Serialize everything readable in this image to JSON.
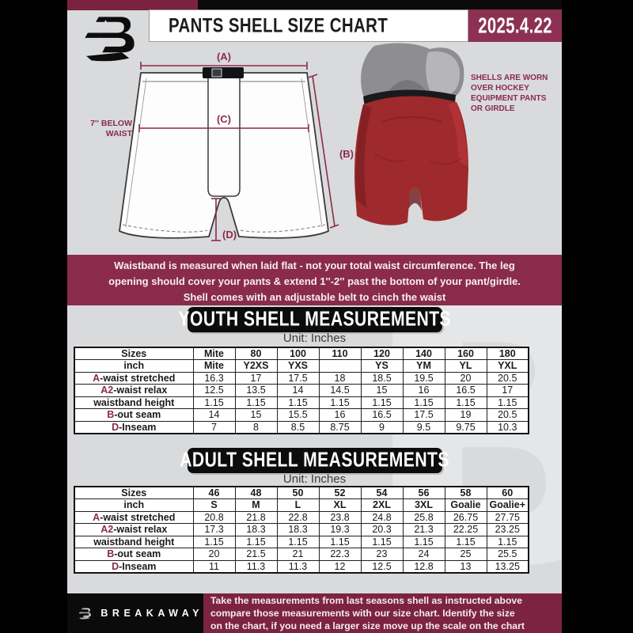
{
  "header": {
    "title": "PANTS SHELL SIZE CHART",
    "date": "2025.4.22",
    "logo_letter": "B"
  },
  "diagram": {
    "label_a": "(A)",
    "label_b": "(B)",
    "label_c": "(C)",
    "label_d": "(D)",
    "waist_note_line1": "7'' BELOW",
    "waist_note_line2": "WAIST"
  },
  "photo_note": {
    "lines": [
      "SHELLS ARE WORN",
      "OVER HOCKEY",
      "EQUIPMENT PANTS",
      "OR GIRDLE"
    ]
  },
  "notice": {
    "line1": "Waistband is measured when laid flat - not your total waist circumference. The leg",
    "line2": "opening should cover your pants & extend 1''-2'' past the bottom of your pant/girdle.",
    "line3": "Shell comes with an adjustable belt to cinch the waist"
  },
  "youth": {
    "banner": "YOUTH SHELL MEASUREMENTS",
    "unit": "Unit: Inches",
    "rows": [
      {
        "prefix": "",
        "label": "Sizes",
        "header": true,
        "values": [
          "Mite",
          "80",
          "100",
          "110",
          "120",
          "140",
          "160",
          "180"
        ]
      },
      {
        "prefix": "",
        "label": "inch",
        "header": true,
        "values": [
          "Mite",
          "Y2XS",
          "YXS",
          "",
          "YS",
          "YM",
          "YL",
          "YXL"
        ]
      },
      {
        "prefix": "A",
        "label": "-waist stretched",
        "header": false,
        "values": [
          "16.3",
          "17",
          "17.5",
          "18",
          "18.5",
          "19.5",
          "20",
          "20.5"
        ]
      },
      {
        "prefix": "A2",
        "label": "-waist relax",
        "header": false,
        "values": [
          "12.5",
          "13.5",
          "14",
          "14.5",
          "15",
          "16",
          "16.5",
          "17"
        ]
      },
      {
        "prefix": "",
        "label": "waistband height",
        "header": false,
        "values": [
          "1.15",
          "1.15",
          "1.15",
          "1.15",
          "1.15",
          "1.15",
          "1.15",
          "1.15"
        ]
      },
      {
        "prefix": "B",
        "label": "-out seam",
        "header": false,
        "values": [
          "14",
          "15",
          "15.5",
          "16",
          "16.5",
          "17.5",
          "19",
          "20.5"
        ]
      },
      {
        "prefix": "D",
        "label": "-Inseam",
        "header": false,
        "values": [
          "7",
          "8",
          "8.5",
          "8.75",
          "9",
          "9.5",
          "9.75",
          "10.3"
        ]
      }
    ]
  },
  "adult": {
    "banner": "ADULT SHELL MEASUREMENTS",
    "unit": "Unit: Inches",
    "rows": [
      {
        "prefix": "",
        "label": "Sizes",
        "header": true,
        "values": [
          "46",
          "48",
          "50",
          "52",
          "54",
          "56",
          "58",
          "60"
        ]
      },
      {
        "prefix": "",
        "label": "inch",
        "header": true,
        "values": [
          "S",
          "M",
          "L",
          "XL",
          "2XL",
          "3XL",
          "Goalie",
          "Goalie+"
        ]
      },
      {
        "prefix": "A",
        "label": "-waist stretched",
        "header": false,
        "values": [
          "20.8",
          "21.8",
          "22.8",
          "23.8",
          "24.8",
          "25.8",
          "26.75",
          "27.75"
        ]
      },
      {
        "prefix": "A2",
        "label": "-waist relax",
        "header": false,
        "values": [
          "17.3",
          "18.3",
          "18.3",
          "19.3",
          "20.3",
          "21.3",
          "22.25",
          "23.25"
        ]
      },
      {
        "prefix": "",
        "label": "waistband height",
        "header": false,
        "values": [
          "1.15",
          "1.15",
          "1.15",
          "1.15",
          "1.15",
          "1.15",
          "1.15",
          "1.15"
        ]
      },
      {
        "prefix": "B",
        "label": "-out seam",
        "header": false,
        "values": [
          "20",
          "21.5",
          "21",
          "22.3",
          "23",
          "24",
          "25",
          "25.5"
        ]
      },
      {
        "prefix": "D",
        "label": "-Inseam",
        "header": false,
        "values": [
          "11",
          "11.3",
          "11.3",
          "12",
          "12.5",
          "12.8",
          "13",
          "13.25"
        ]
      }
    ]
  },
  "footer": {
    "brand": "BREAKAWAY",
    "line1": "Take the measurements from last seasons shell as instructed above",
    "line2": "compare those measurements  with our size chart. Identify the size",
    "line3": "on the chart, if you need a larger size move up the scale on the chart"
  },
  "colors": {
    "maroon_dark": "#7a2240",
    "maroon": "#8a2b4b",
    "maroon_date_badge": "#8d3152",
    "maroon_footer": "#7d2342",
    "page_background": "#d9dadc",
    "banner_black": "#0c0c0c",
    "shell_red": "#9e2a2d"
  }
}
